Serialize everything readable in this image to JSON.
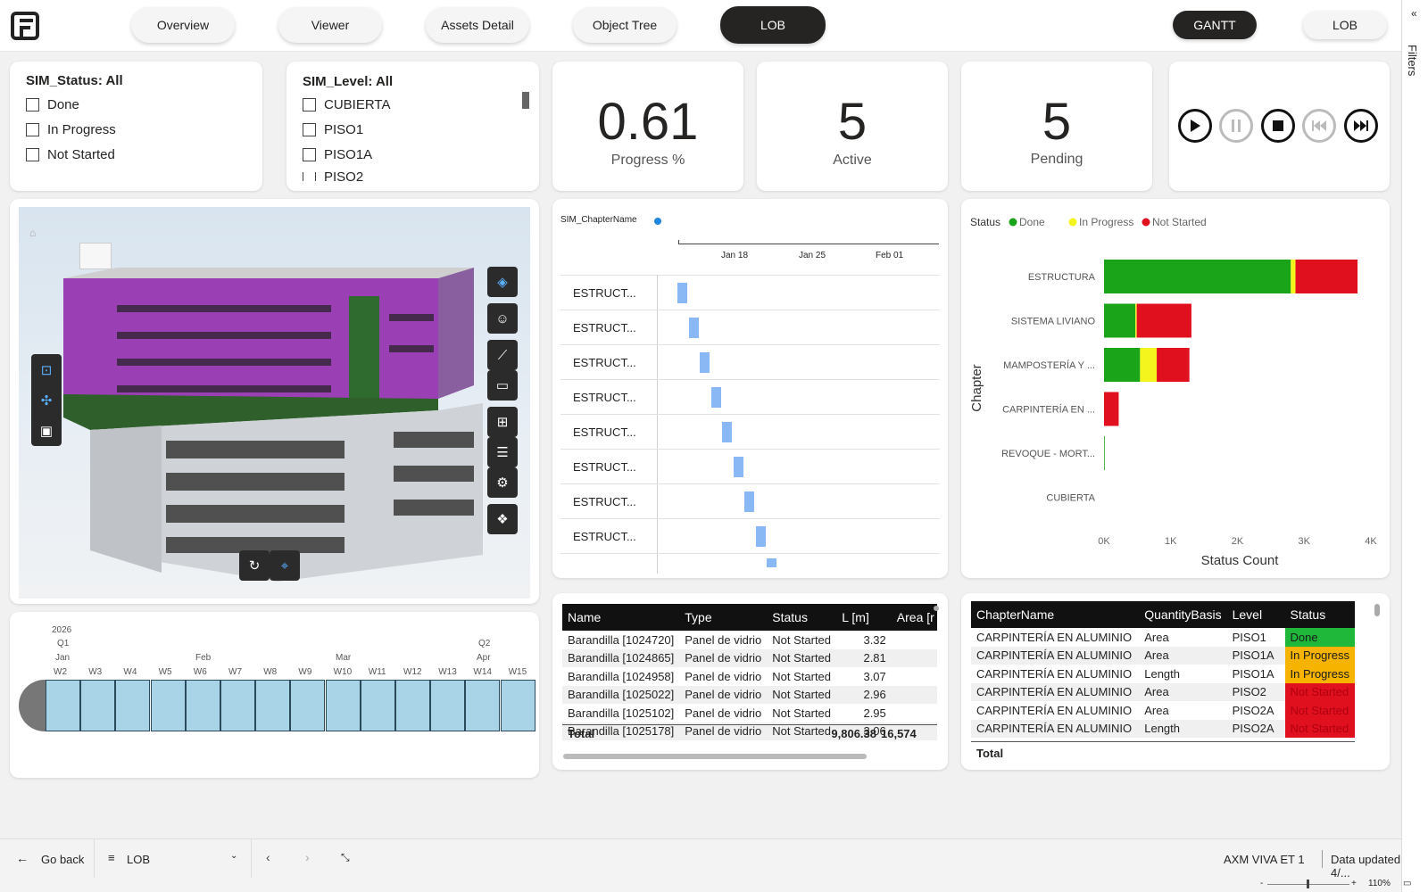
{
  "nav": {
    "tabs": [
      "Overview",
      "Viewer",
      "Assets Detail",
      "Object Tree",
      "LOB"
    ],
    "right_buttons": [
      "GANTT",
      "LOB"
    ]
  },
  "filter_pane": {
    "label": "Filters"
  },
  "slicer_status": {
    "title": "SIM_Status: All",
    "options": [
      "Done",
      "In Progress",
      "Not Started"
    ]
  },
  "slicer_level": {
    "title": "SIM_Level: All",
    "options": [
      "CUBIERTA",
      "PISO1",
      "PISO1A",
      "PISO2"
    ]
  },
  "kpis": [
    {
      "value": "0.61",
      "label": "Progress %"
    },
    {
      "value": "5",
      "label": "Active"
    },
    {
      "value": "5",
      "label": "Pending"
    }
  ],
  "timeline": {
    "year": "2026",
    "quarters": [
      {
        "label": "Q1",
        "month": "Jan"
      },
      {
        "label": "Q2",
        "month": "Apr"
      }
    ],
    "months": [
      "Feb",
      "Mar"
    ],
    "weeks": [
      "W2",
      "W3",
      "W4",
      "W5",
      "W6",
      "W7",
      "W8",
      "W9",
      "W10",
      "W11",
      "W12",
      "W13",
      "W14",
      "W15"
    ]
  },
  "gantt": {
    "field": "SIM_ChapterName",
    "dates": [
      "Jan 18",
      "Jan 25",
      "Feb 01"
    ],
    "rows": [
      "ESTRUCT...",
      "ESTRUCT...",
      "ESTRUCT...",
      "ESTRUCT...",
      "ESTRUCT...",
      "ESTRUCT...",
      "ESTRUCT...",
      "ESTRUCT..."
    ],
    "bar_color": "#8ab8f4"
  },
  "chart_data": {
    "type": "bar",
    "orientation": "horizontal",
    "stacked": true,
    "legend_title": "Status",
    "legend_position": "top-left",
    "categories": [
      "ESTRUCTURA",
      "SISTEMA LIVIANO",
      "MAMPOSTERÍA Y ...",
      "CARPINTERÍA EN ...",
      "REVOQUE - MORT...",
      "CUBIERTA"
    ],
    "series": [
      {
        "name": "Done",
        "color": "#1aa41a",
        "values": [
          2800,
          470,
          540,
          0,
          10,
          0
        ]
      },
      {
        "name": "In Progress",
        "color": "#f5f51e",
        "values": [
          70,
          20,
          250,
          0,
          0,
          0
        ]
      },
      {
        "name": "Not Started",
        "color": "#e0101f",
        "values": [
          930,
          820,
          490,
          220,
          0,
          0
        ]
      }
    ],
    "xlabel": "Status Count",
    "ylabel": "Chapter",
    "xticks": [
      "0K",
      "1K",
      "2K",
      "3K",
      "4K"
    ],
    "xlim": [
      0,
      4000
    ]
  },
  "assets_table": {
    "columns": [
      "Name",
      "Type",
      "Status",
      "L [m]",
      "Area [r"
    ],
    "rows": [
      [
        "Barandilla [1024720]",
        "Panel de vidrio",
        "Not Started",
        "3.32",
        ""
      ],
      [
        "Barandilla [1024865]",
        "Panel de vidrio",
        "Not Started",
        "2.81",
        ""
      ],
      [
        "Barandilla [1024958]",
        "Panel de vidrio",
        "Not Started",
        "3.07",
        ""
      ],
      [
        "Barandilla [1025022]",
        "Panel de vidrio",
        "Not Started",
        "2.96",
        ""
      ],
      [
        "Barandilla [1025102]",
        "Panel de vidrio",
        "Not Started",
        "2.95",
        ""
      ],
      [
        "Barandilla [1025178]",
        "Panel de vidrio",
        "Not Started",
        "3.06",
        ""
      ]
    ],
    "total_label": "Total",
    "total_l": "9,806.38",
    "total_area": "16,574"
  },
  "chapter_table": {
    "columns": [
      "ChapterName",
      "QuantityBasis",
      "Level",
      "Status"
    ],
    "rows": [
      [
        "CARPINTERÍA EN ALUMINIO",
        "Area",
        "PISO1",
        "Done"
      ],
      [
        "CARPINTERÍA EN ALUMINIO",
        "Area",
        "PISO1A",
        "In Progress"
      ],
      [
        "CARPINTERÍA EN ALUMINIO",
        "Length",
        "PISO1A",
        "In Progress"
      ],
      [
        "CARPINTERÍA EN ALUMINIO",
        "Area",
        "PISO2",
        "Not Started"
      ],
      [
        "CARPINTERÍA EN ALUMINIO",
        "Area",
        "PISO2A",
        "Not Started"
      ],
      [
        "CARPINTERÍA EN ALUMINIO",
        "Length",
        "PISO2A",
        "Not Started"
      ]
    ],
    "status_colors": {
      "Done": "#1fb83a",
      "In Progress": "#f6b400",
      "Not Started": "#e0101f"
    },
    "total_label": "Total"
  },
  "bottom": {
    "go_back": "Go back",
    "page_name": "LOB",
    "workspace": "AXM VIVA ET 1",
    "updated": "Data updated 4/...",
    "zoom": "110%"
  }
}
